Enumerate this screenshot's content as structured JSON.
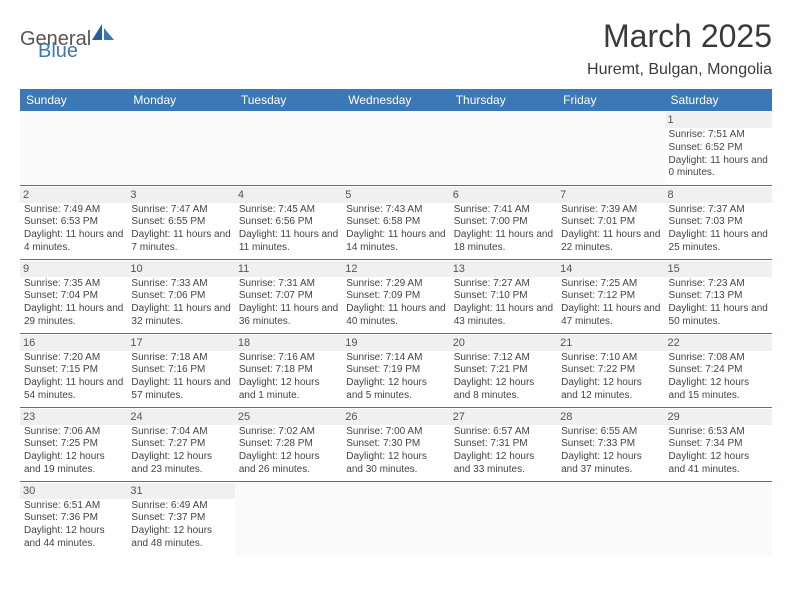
{
  "logo": {
    "general": "General",
    "blue": "Blue"
  },
  "title": "March 2025",
  "location": "Huremt, Bulgan, Mongolia",
  "colors": {
    "header_bg": "#3b78b5",
    "header_text": "#ffffff",
    "border": "#3b78b5",
    "daynum_bg": "#f0f0f0",
    "text": "#444444"
  },
  "weekday_labels": [
    "Sunday",
    "Monday",
    "Tuesday",
    "Wednesday",
    "Thursday",
    "Friday",
    "Saturday"
  ],
  "first_weekday_index": 6,
  "days": [
    {
      "n": 1,
      "sunrise": "7:51 AM",
      "sunset": "6:52 PM",
      "day_h": 11,
      "day_m": 0
    },
    {
      "n": 2,
      "sunrise": "7:49 AM",
      "sunset": "6:53 PM",
      "day_h": 11,
      "day_m": 4
    },
    {
      "n": 3,
      "sunrise": "7:47 AM",
      "sunset": "6:55 PM",
      "day_h": 11,
      "day_m": 7
    },
    {
      "n": 4,
      "sunrise": "7:45 AM",
      "sunset": "6:56 PM",
      "day_h": 11,
      "day_m": 11
    },
    {
      "n": 5,
      "sunrise": "7:43 AM",
      "sunset": "6:58 PM",
      "day_h": 11,
      "day_m": 14
    },
    {
      "n": 6,
      "sunrise": "7:41 AM",
      "sunset": "7:00 PM",
      "day_h": 11,
      "day_m": 18
    },
    {
      "n": 7,
      "sunrise": "7:39 AM",
      "sunset": "7:01 PM",
      "day_h": 11,
      "day_m": 22
    },
    {
      "n": 8,
      "sunrise": "7:37 AM",
      "sunset": "7:03 PM",
      "day_h": 11,
      "day_m": 25
    },
    {
      "n": 9,
      "sunrise": "7:35 AM",
      "sunset": "7:04 PM",
      "day_h": 11,
      "day_m": 29
    },
    {
      "n": 10,
      "sunrise": "7:33 AM",
      "sunset": "7:06 PM",
      "day_h": 11,
      "day_m": 32
    },
    {
      "n": 11,
      "sunrise": "7:31 AM",
      "sunset": "7:07 PM",
      "day_h": 11,
      "day_m": 36
    },
    {
      "n": 12,
      "sunrise": "7:29 AM",
      "sunset": "7:09 PM",
      "day_h": 11,
      "day_m": 40
    },
    {
      "n": 13,
      "sunrise": "7:27 AM",
      "sunset": "7:10 PM",
      "day_h": 11,
      "day_m": 43
    },
    {
      "n": 14,
      "sunrise": "7:25 AM",
      "sunset": "7:12 PM",
      "day_h": 11,
      "day_m": 47
    },
    {
      "n": 15,
      "sunrise": "7:23 AM",
      "sunset": "7:13 PM",
      "day_h": 11,
      "day_m": 50
    },
    {
      "n": 16,
      "sunrise": "7:20 AM",
      "sunset": "7:15 PM",
      "day_h": 11,
      "day_m": 54
    },
    {
      "n": 17,
      "sunrise": "7:18 AM",
      "sunset": "7:16 PM",
      "day_h": 11,
      "day_m": 57
    },
    {
      "n": 18,
      "sunrise": "7:16 AM",
      "sunset": "7:18 PM",
      "day_h": 12,
      "day_m": 1
    },
    {
      "n": 19,
      "sunrise": "7:14 AM",
      "sunset": "7:19 PM",
      "day_h": 12,
      "day_m": 5
    },
    {
      "n": 20,
      "sunrise": "7:12 AM",
      "sunset": "7:21 PM",
      "day_h": 12,
      "day_m": 8
    },
    {
      "n": 21,
      "sunrise": "7:10 AM",
      "sunset": "7:22 PM",
      "day_h": 12,
      "day_m": 12
    },
    {
      "n": 22,
      "sunrise": "7:08 AM",
      "sunset": "7:24 PM",
      "day_h": 12,
      "day_m": 15
    },
    {
      "n": 23,
      "sunrise": "7:06 AM",
      "sunset": "7:25 PM",
      "day_h": 12,
      "day_m": 19
    },
    {
      "n": 24,
      "sunrise": "7:04 AM",
      "sunset": "7:27 PM",
      "day_h": 12,
      "day_m": 23
    },
    {
      "n": 25,
      "sunrise": "7:02 AM",
      "sunset": "7:28 PM",
      "day_h": 12,
      "day_m": 26
    },
    {
      "n": 26,
      "sunrise": "7:00 AM",
      "sunset": "7:30 PM",
      "day_h": 12,
      "day_m": 30
    },
    {
      "n": 27,
      "sunrise": "6:57 AM",
      "sunset": "7:31 PM",
      "day_h": 12,
      "day_m": 33
    },
    {
      "n": 28,
      "sunrise": "6:55 AM",
      "sunset": "7:33 PM",
      "day_h": 12,
      "day_m": 37
    },
    {
      "n": 29,
      "sunrise": "6:53 AM",
      "sunset": "7:34 PM",
      "day_h": 12,
      "day_m": 41
    },
    {
      "n": 30,
      "sunrise": "6:51 AM",
      "sunset": "7:36 PM",
      "day_h": 12,
      "day_m": 44
    },
    {
      "n": 31,
      "sunrise": "6:49 AM",
      "sunset": "7:37 PM",
      "day_h": 12,
      "day_m": 48
    }
  ],
  "labels": {
    "sunrise_prefix": "Sunrise: ",
    "sunset_prefix": "Sunset: ",
    "daylight_prefix": "Daylight: ",
    "hours_word": " hours",
    "and_word": " and ",
    "minute_word": " minute.",
    "minutes_word": " minutes."
  }
}
